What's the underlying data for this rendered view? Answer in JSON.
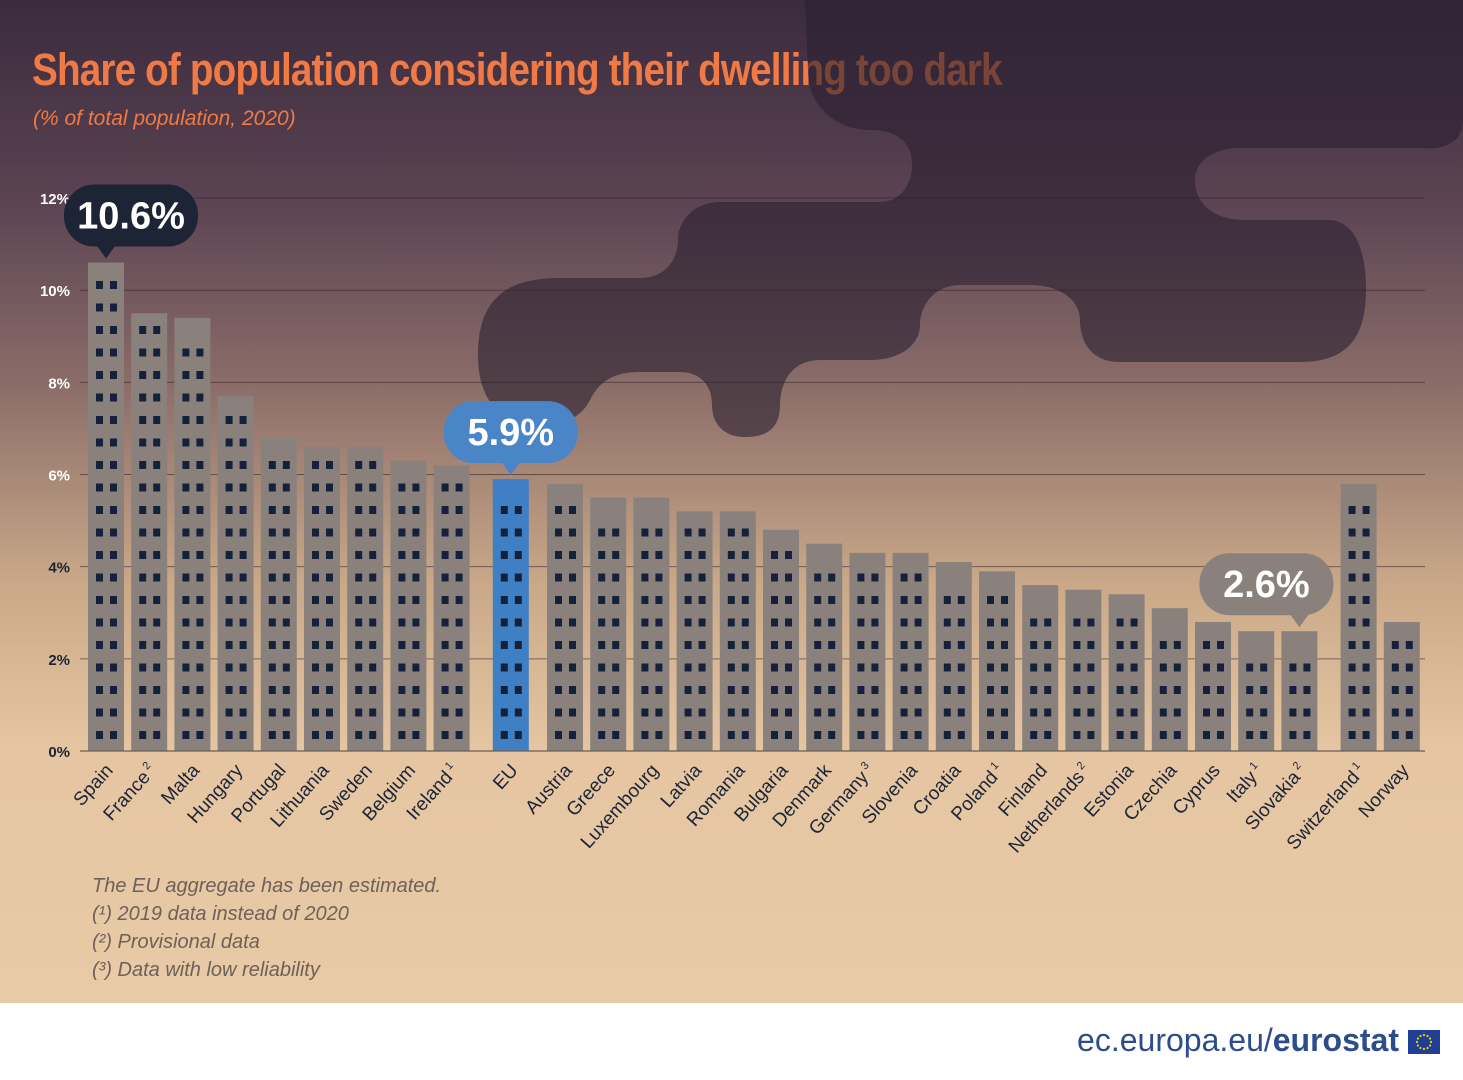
{
  "title": "Share of population considering their dwelling too dark",
  "subtitle": "(% of total population, 2020)",
  "notes": [
    "The EU aggregate has been estimated.",
    "(¹) 2019 data instead of 2020",
    "(²) Provisional data",
    "(³) Data with low reliability"
  ],
  "brand": {
    "domain": "ec.europa.eu/",
    "name": "eurostat"
  },
  "colors": {
    "bar": "#8b817c",
    "eu_bar": "#3f7fc4",
    "window": "#15213a",
    "title": "#ef7a45",
    "callout_dark": "#1c2436",
    "callout_blue": "#4a85c7",
    "callout_grey": "#8b817c"
  },
  "chart_data": {
    "type": "bar",
    "title": "Share of population considering their dwelling too dark",
    "ylabel": "% of total population",
    "ylim": [
      0,
      12
    ],
    "yticks": [
      0,
      2,
      4,
      6,
      8,
      10,
      12
    ],
    "ytick_labels": [
      "0%",
      "2%",
      "4%",
      "6%",
      "8%",
      "10%",
      "12%"
    ],
    "categories": [
      "Spain",
      "France",
      "Malta",
      "Hungary",
      "Portugal",
      "Lithuania",
      "Sweden",
      "Belgium",
      "Ireland",
      "EU",
      "Austria",
      "Greece",
      "Luxembourg",
      "Latvia",
      "Romania",
      "Bulgaria",
      "Denmark",
      "Germany",
      "Slovenia",
      "Croatia",
      "Poland",
      "Finland",
      "Netherlands",
      "Estonia",
      "Czechia",
      "Cyprus",
      "Italy",
      "Slovakia",
      "Switzerland",
      "Norway"
    ],
    "footnote_marks": [
      "",
      "2",
      "",
      "",
      "",
      "",
      "",
      "",
      "1",
      "",
      "",
      "",
      "",
      "",
      "",
      "",
      "",
      "3",
      "",
      "",
      "1",
      "",
      "2",
      "",
      "",
      "",
      "1",
      "2",
      "1",
      ""
    ],
    "values": [
      10.6,
      9.5,
      9.4,
      7.7,
      6.8,
      6.6,
      6.6,
      6.3,
      6.2,
      5.9,
      5.8,
      5.5,
      5.5,
      5.2,
      5.2,
      4.8,
      4.5,
      4.3,
      4.3,
      4.1,
      3.9,
      3.6,
      3.5,
      3.4,
      3.1,
      2.8,
      2.6,
      2.6,
      5.8,
      2.8
    ],
    "callouts": [
      {
        "category": "Spain",
        "label": "10.6%"
      },
      {
        "category": "EU",
        "label": "5.9%"
      },
      {
        "category": "Slovakia",
        "label": "2.6%"
      }
    ]
  }
}
